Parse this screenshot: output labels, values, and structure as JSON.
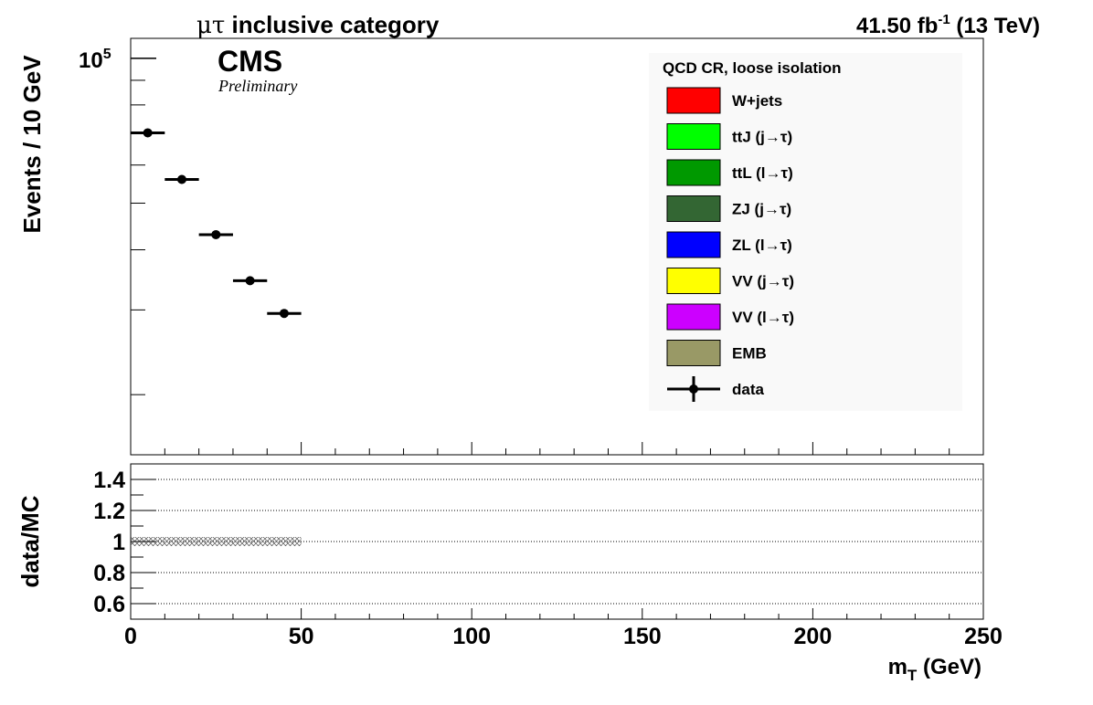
{
  "header": {
    "category_prefix": "μτ",
    "category_suffix": " inclusive category",
    "lumi_value": "41.50 fb",
    "lumi_exp": "-1",
    "energy": " (13 TeV)"
  },
  "cms": {
    "label": "CMS",
    "sublabel": "Preliminary"
  },
  "chart_data": [
    {
      "type": "scatter",
      "panel": "main",
      "ylabel": "Events / 10 GeV",
      "yscale": "log",
      "ylim": [
        15000,
        110000
      ],
      "xlim": [
        0,
        250
      ],
      "ytick_label": {
        "base": "10",
        "exp": "5"
      },
      "legend_title": "QCD CR, loose isolation",
      "legend_placement": "top-right",
      "legend": [
        {
          "label": "W+jets",
          "color": "#ff0000"
        },
        {
          "label": "ttJ (j→τ)",
          "color": "#00ff00"
        },
        {
          "label": "ttL (l→τ)",
          "color": "#009900"
        },
        {
          "label": "ZJ (j→τ)",
          "color": "#336633"
        },
        {
          "label": "ZL (l→τ)",
          "color": "#0000ff"
        },
        {
          "label": "VV (j→τ)",
          "color": "#ffff00"
        },
        {
          "label": "VV (l→τ)",
          "color": "#cc00ff"
        },
        {
          "label": "EMB",
          "color": "#999966"
        },
        {
          "label": "data",
          "color": "#000000"
        }
      ],
      "series": [
        {
          "name": "data",
          "x": [
            5,
            15,
            25,
            35,
            45
          ],
          "xerr": 5,
          "y": [
            70000,
            56000,
            43000,
            34500,
            29500
          ]
        }
      ]
    },
    {
      "type": "line",
      "panel": "ratio",
      "ylabel": "data/MC",
      "xlabel_main": "m",
      "xlabel_sub": "T",
      "xlabel_unit": " (GeV)",
      "xlim": [
        0,
        250
      ],
      "ylim": [
        0.5,
        1.5
      ],
      "xticks": [
        0,
        50,
        100,
        150,
        200,
        250
      ],
      "yticks": [
        "0.6",
        "0.8",
        "1",
        "1.2",
        "1.4"
      ],
      "ytick_values": [
        0.6,
        0.8,
        1.0,
        1.2,
        1.4
      ],
      "grid_y": true,
      "uncertainty_band": {
        "x_range": [
          0,
          50
        ],
        "center": 1.0
      }
    }
  ]
}
